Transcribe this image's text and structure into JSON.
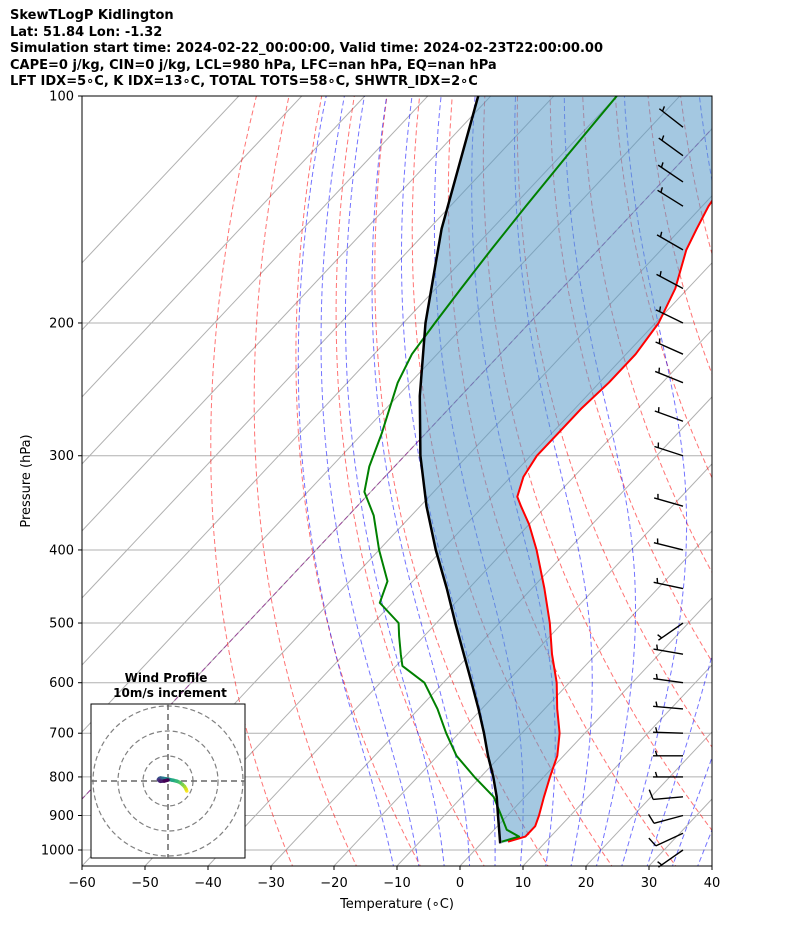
{
  "header": {
    "line1": "SkewTLogP Kidlington",
    "line2": "Lat: 51.84   Lon: -1.32",
    "line3": "Simulation start time: 2024-02-22_00:00:00, Valid time: 2024-02-23T22:00:00.00",
    "line4": "CAPE=0 j/kg, CIN=0 j/kg, LCL=980 hPa, LFC=nan hPa, EQ=nan hPa",
    "line5": "LFT IDX=5∘C, K IDX=13∘C, TOTAL TOTS=58∘C, SHWTR_IDX=2∘C"
  },
  "chart_data": {
    "type": "line",
    "subtype": "skew-t log-p",
    "xlabel": "Temperature (∘C)",
    "ylabel": "Pressure (hPa)",
    "xlim": [
      -60,
      40
    ],
    "ylim": [
      1050,
      100
    ],
    "y_scale": "log",
    "grid": true,
    "x_ticks": [
      "−60",
      "−50",
      "−40",
      "−30",
      "−20",
      "−10",
      "0",
      "10",
      "20",
      "30",
      "40"
    ],
    "y_ticks": [
      "100",
      "200",
      "300",
      "400",
      "500",
      "600",
      "700",
      "800",
      "900",
      "1000"
    ],
    "series": [
      {
        "role": "temperature",
        "color": "#ff0000",
        "pressure": [
          975,
          960,
          930,
          900,
          850,
          800,
          750,
          700,
          650,
          600,
          550,
          500,
          450,
          400,
          370,
          350,
          340,
          320,
          300,
          280,
          260,
          240,
          220,
          200,
          180,
          160,
          150,
          140,
          130,
          120,
          110,
          100
        ],
        "temperature": [
          4,
          6,
          6,
          5,
          3,
          1,
          -1,
          -4,
          -8,
          -12,
          -17,
          -22,
          -28,
          -35,
          -40,
          -44,
          -46,
          -48,
          -49,
          -49,
          -49,
          -48.5,
          -48.5,
          -49.5,
          -52,
          -56,
          -57.5,
          -59,
          -60,
          -60.5,
          -61,
          -61.5
        ]
      },
      {
        "role": "dewpoint",
        "color": "#008000",
        "pressure": [
          975,
          960,
          940,
          900,
          850,
          800,
          750,
          700,
          650,
          600,
          570,
          550,
          520,
          500,
          470,
          440,
          400,
          360,
          335,
          310,
          280,
          240,
          220,
          200,
          180,
          160,
          140,
          120,
          100
        ],
        "temperature": [
          3,
          5,
          2,
          -1,
          -5,
          -11,
          -17,
          -22,
          -27,
          -33,
          -39,
          -41,
          -44,
          -46,
          -52,
          -54,
          -60,
          -66,
          -71,
          -74,
          -77,
          -82,
          -84,
          -85,
          -86,
          -87,
          -88,
          -89,
          -90
        ]
      },
      {
        "role": "parcel",
        "color": "#000000",
        "pressure": [
          980,
          900,
          850,
          800,
          750,
          700,
          650,
          600,
          550,
          500,
          450,
          400,
          350,
          300,
          250,
          200,
          150,
          100
        ],
        "temperature": [
          3,
          -1.5,
          -4.5,
          -8,
          -12,
          -16,
          -20.5,
          -25.5,
          -31,
          -37,
          -43.5,
          -51,
          -59,
          -67.5,
          -76.5,
          -86.5,
          -98,
          -112
        ]
      }
    ],
    "wind_barbs": {
      "pressure": [
        1000,
        950,
        900,
        850,
        800,
        750,
        700,
        650,
        600,
        550,
        500,
        450,
        400,
        350,
        300,
        270,
        240,
        220,
        200,
        180,
        160,
        140,
        130,
        120,
        110
      ],
      "speed_kt": [
        8,
        10,
        12,
        10,
        8,
        6,
        5,
        5,
        5,
        5,
        5,
        5,
        5,
        5,
        5,
        5,
        5,
        5,
        5,
        5,
        5,
        5,
        5,
        5,
        5
      ],
      "direction_deg": [
        235,
        245,
        255,
        265,
        270,
        270,
        272,
        275,
        278,
        280,
        235,
        282,
        284,
        286,
        288,
        290,
        292,
        294,
        296,
        298,
        300,
        302,
        304,
        306,
        308
      ]
    },
    "inset": {
      "title": "Wind Profile",
      "subtitle": "10m/s increment",
      "rings_ms": [
        10,
        20,
        30
      ],
      "u_ms": [
        7.5,
        7.2,
        6.6,
        5.8,
        4.8,
        3.6,
        2.0,
        0.5,
        -1.0,
        -2.2,
        -3.0,
        -3.5,
        -3.8,
        -3.6,
        -3.0,
        -1.5,
        0.0
      ],
      "v_ms": [
        -4.0,
        -3.2,
        -2.2,
        -1.4,
        -0.6,
        -0.1,
        0.3,
        0.6,
        0.9,
        1.1,
        1.2,
        1.0,
        0.6,
        0.2,
        -0.1,
        0.0,
        0.4
      ]
    },
    "reference_lines": {
      "dry_adiabat_color": "#ff0000",
      "moist_adiabat_color": "#0000ff",
      "mixing_ratio_color": "#808080",
      "zero_isotherm_color": "#8b008b"
    }
  }
}
